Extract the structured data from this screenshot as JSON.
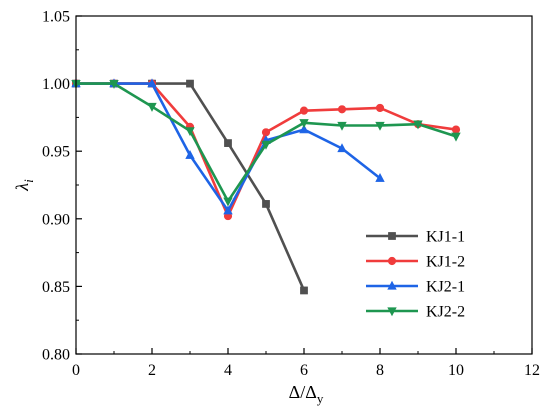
{
  "chart_data": {
    "type": "line",
    "title": "",
    "xlabel": "Δ/Δ",
    "xlabel_sub": "y",
    "ylabel": "λ",
    "ylabel_sub": "i",
    "xlim": [
      0,
      12
    ],
    "ylim": [
      0.8,
      1.05
    ],
    "xticks": [
      0,
      2,
      4,
      6,
      8,
      10,
      12
    ],
    "yticks": [
      0.8,
      0.85,
      0.9,
      0.95,
      1.0,
      1.05
    ],
    "xtick_labels": [
      "0",
      "2",
      "4",
      "6",
      "8",
      "10",
      "12"
    ],
    "ytick_labels": [
      "0.80",
      "0.85",
      "0.90",
      "0.95",
      "1.00",
      "1.05"
    ],
    "grid": false,
    "legend_position": "lower-right",
    "series": [
      {
        "name": "KJ1-1",
        "color": "#505050",
        "marker": "square",
        "x": [
          0,
          1,
          2,
          3,
          4,
          5,
          6
        ],
        "y": [
          1.0,
          1.0,
          1.0,
          1.0,
          0.956,
          0.911,
          0.847
        ]
      },
      {
        "name": "KJ1-2",
        "color": "#f03c3c",
        "marker": "circle",
        "x": [
          0,
          1,
          2,
          3,
          4,
          5,
          6,
          7,
          8,
          9,
          10
        ],
        "y": [
          1.0,
          1.0,
          1.0,
          0.968,
          0.902,
          0.964,
          0.98,
          0.981,
          0.982,
          0.97,
          0.966
        ]
      },
      {
        "name": "KJ2-1",
        "color": "#1e64e6",
        "marker": "triangle-up",
        "x": [
          0,
          1,
          2,
          3,
          4,
          5,
          6,
          7,
          8
        ],
        "y": [
          1.0,
          1.0,
          1.0,
          0.947,
          0.906,
          0.958,
          0.966,
          0.952,
          0.93
        ]
      },
      {
        "name": "KJ2-2",
        "color": "#1e9650",
        "marker": "triangle-down",
        "x": [
          0,
          1,
          2,
          3,
          4,
          5,
          6,
          7,
          8,
          9,
          10
        ],
        "y": [
          1.0,
          1.0,
          0.983,
          0.965,
          0.913,
          0.955,
          0.971,
          0.969,
          0.969,
          0.97,
          0.961
        ]
      }
    ]
  }
}
